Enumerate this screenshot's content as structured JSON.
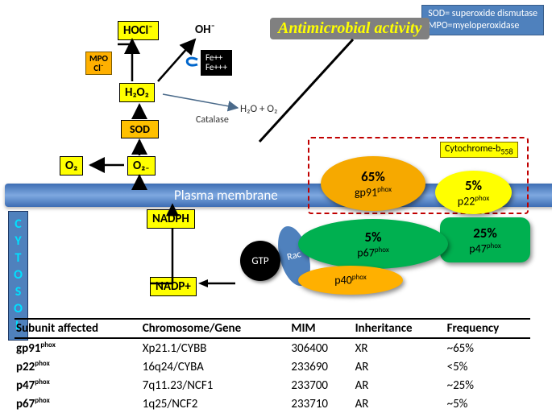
{
  "legend": {
    "l1": "SOD= superoxide dismutase",
    "l2": "MPO=myeloperoxidase"
  },
  "title_amt": "Antimicrobial activity",
  "membrane": "Plasma membrane",
  "cytosol": "CYTOSOL",
  "react": {
    "O2": "O₂",
    "O2minus": "O₂₋",
    "SOD": "SOD",
    "H2O2": "H₂O₂",
    "MPO1": "MPO",
    "MPO2": "Cl⁻",
    "HOCl": "HOCl⁻",
    "OH": "OH⁻",
    "Fe1": "Fe++",
    "Fe2": "Fe+++",
    "catalase": "Catalase",
    "h2o_o2": "H₂O + O₂",
    "NADPH": "NADPH",
    "NADP": "NADP+"
  },
  "gtp": "GTP",
  "rac": "Rac",
  "cyto_label": "Cytochrome-b₅₅₈",
  "sub": {
    "gp91": {
      "pct": "65%",
      "name": "gp91",
      "sup": "phox",
      "fill": "#f6a900"
    },
    "p22": {
      "pct": "5%",
      "name": "p22",
      "sup": "phox",
      "fill": "#ffff00"
    },
    "p67": {
      "pct": "5%",
      "name": "p67",
      "sup": "phox",
      "fill": "#00b050"
    },
    "p47": {
      "pct": "25%",
      "name": "p47",
      "sup": "phox",
      "fill": "#00b050"
    },
    "p40": {
      "name": "p40",
      "sup": "phox",
      "fill": "#ffb000"
    }
  },
  "table": {
    "headers": [
      "Subunit affected",
      "Chromosome/Gene",
      "MIM",
      "Inheritance",
      "Frequency"
    ],
    "rows": [
      [
        "gp91",
        "phox",
        "Xp21.1/CYBB",
        "306400",
        "XR",
        "~65%"
      ],
      [
        "p22",
        "phox",
        "16q24/CYBA",
        "233690",
        "AR",
        "<5%"
      ],
      [
        "p47",
        "phox",
        "7q11.23/NCF1",
        "233700",
        "AR",
        "~25%"
      ],
      [
        "p67",
        "phox",
        "1q25/NCF2",
        "233710",
        "AR",
        "~5%"
      ]
    ]
  },
  "colors": {
    "yellow": "#ffff00",
    "orange": "#ffb000",
    "sod": "#ffc000",
    "membrane": "#4f81bd",
    "green": "#00b050",
    "gp91": "#f6a900",
    "black": "#000000",
    "arrow": "#000000",
    "thinArrow": "#4a6a8a",
    "legendBg": "#4f81bd"
  }
}
